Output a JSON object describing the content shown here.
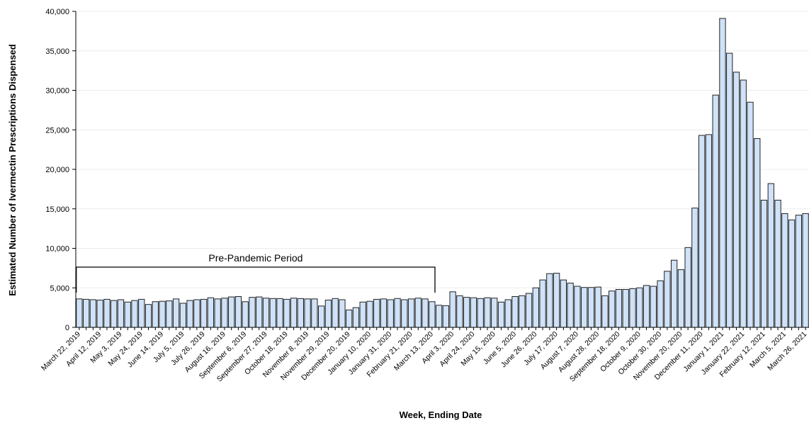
{
  "chart_data": {
    "type": "bar",
    "title": "",
    "xlabel": "Week, Ending Date",
    "ylabel": "Estimated Number of Ivermectin Prescriptions Dispensed",
    "ylim": [
      0,
      40000
    ],
    "yticks": [
      0,
      5000,
      10000,
      15000,
      20000,
      25000,
      30000,
      35000,
      40000
    ],
    "ytick_labels": [
      "0",
      "5,000",
      "10,000",
      "15,000",
      "20,000",
      "25,000",
      "30,000",
      "35,000",
      "40,000"
    ],
    "grid": true,
    "bar_fill": "#cfe2f8",
    "bar_stroke": "#222222",
    "tick_labels": [
      "March 22, 2019",
      "April 12, 2019",
      "May 3, 2019",
      "May 24, 2019",
      "June 14, 2019",
      "July 5, 2019",
      "July 26, 2019",
      "August 16, 2019",
      "September 6, 2019",
      "September 27, 2019",
      "October 18, 2019",
      "November 8, 2019",
      "November 29, 2019",
      "December 20, 2019",
      "January 10, 2020",
      "January 31, 2020",
      "February 21, 2020",
      "March 13, 2020",
      "April 3, 2020",
      "April 24, 2020",
      "May 15, 2020",
      "June 5, 2020",
      "June 26, 2020",
      "July 17, 2020",
      "August 7, 2020",
      "August 28, 2020",
      "September 18, 2020",
      "October 9, 2020",
      "October 30, 2020",
      "November 20, 2020",
      "December 11, 2020",
      "January 1, 2021",
      "January 22, 2021",
      "February 12, 2021",
      "March 5, 2021",
      "March 26, 2021"
    ],
    "tick_every": 3,
    "values": [
      3600,
      3550,
      3500,
      3450,
      3550,
      3400,
      3500,
      3200,
      3400,
      3550,
      2900,
      3250,
      3300,
      3350,
      3600,
      3050,
      3400,
      3500,
      3550,
      3750,
      3600,
      3700,
      3850,
      3900,
      3250,
      3800,
      3850,
      3700,
      3650,
      3650,
      3550,
      3700,
      3650,
      3600,
      3600,
      2700,
      3450,
      3650,
      3500,
      2200,
      2500,
      3200,
      3300,
      3550,
      3600,
      3500,
      3650,
      3500,
      3600,
      3700,
      3600,
      3250,
      2800,
      2750,
      4500,
      4000,
      3800,
      3750,
      3650,
      3750,
      3700,
      3200,
      3500,
      3900,
      4000,
      4300,
      5000,
      6000,
      6800,
      6850,
      6000,
      5600,
      5200,
      5050,
      5050,
      5100,
      4000,
      4600,
      4800,
      4800,
      4900,
      5000,
      5300,
      5200,
      5900,
      7100,
      8500,
      7300,
      10100,
      15100,
      24300,
      24400,
      29400,
      39100,
      34700,
      32300,
      31300,
      28500,
      23900,
      16100,
      18200,
      16100,
      14400,
      13600,
      14200,
      14400
    ],
    "annotations": [
      {
        "text": "Pre-Pandemic Period",
        "x_start_index": 0,
        "x_end_index": 51
      }
    ]
  }
}
